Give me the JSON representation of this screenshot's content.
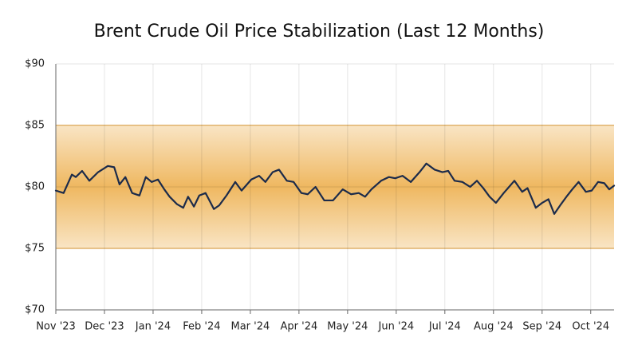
{
  "chart_data": {
    "type": "line",
    "title": "Brent Crude Oil Price Stabilization (Last 12 Months)",
    "x": [
      0,
      0.16,
      0.33,
      0.41,
      0.54,
      0.69,
      0.87,
      1.07,
      1.2,
      1.31,
      1.43,
      1.57,
      1.72,
      1.85,
      1.97,
      2.1,
      2.23,
      2.34,
      2.49,
      2.62,
      2.72,
      2.84,
      2.95,
      3.08,
      3.25,
      3.36,
      3.51,
      3.69,
      3.82,
      4.02,
      4.18,
      4.31,
      4.46,
      4.59,
      4.75,
      4.89,
      5.05,
      5.18,
      5.34,
      5.52,
      5.7,
      5.9,
      6.07,
      6.23,
      6.36,
      6.49,
      6.69,
      6.85,
      6.98,
      7.13,
      7.3,
      7.48,
      7.62,
      7.79,
      7.95,
      8.07,
      8.2,
      8.36,
      8.52,
      8.66,
      8.79,
      8.92,
      9.05,
      9.21,
      9.43,
      9.59,
      9.7,
      9.87,
      10,
      10.13,
      10.25,
      10.39,
      10.52,
      10.62,
      10.75,
      10.9,
      11.02,
      11.15,
      11.28,
      11.38,
      11.48
    ],
    "values": [
      79.7,
      79.5,
      81,
      80.8,
      81.3,
      80.5,
      81.2,
      81.7,
      81.6,
      80.2,
      80.8,
      79.5,
      79.3,
      80.8,
      80.4,
      80.6,
      79.8,
      79.2,
      78.6,
      78.3,
      79.2,
      78.4,
      79.3,
      79.5,
      78.2,
      78.5,
      79.3,
      80.4,
      79.7,
      80.6,
      80.9,
      80.4,
      81.2,
      81.4,
      80.5,
      80.4,
      79.5,
      79.4,
      80.0,
      78.9,
      78.9,
      79.8,
      79.4,
      79.5,
      79.2,
      79.8,
      80.5,
      80.8,
      80.7,
      80.9,
      80.4,
      81.2,
      81.9,
      81.4,
      81.2,
      81.3,
      80.5,
      80.4,
      80.0,
      80.5,
      79.9,
      79.2,
      78.7,
      79.5,
      80.5,
      79.6,
      79.9,
      78.3,
      78.7,
      79.0,
      77.8,
      78.6,
      79.3,
      79.8,
      80.4,
      79.6,
      79.7,
      80.4,
      80.3,
      79.8,
      80.1
    ],
    "color": "#1c2b4a",
    "xlim": [
      0,
      11.48
    ],
    "xticks": [
      {
        "value": 0,
        "label": "Nov '23"
      },
      {
        "value": 1,
        "label": "Dec '23"
      },
      {
        "value": 2,
        "label": "Jan '24"
      },
      {
        "value": 3,
        "label": "Feb '24"
      },
      {
        "value": 4,
        "label": "Mar '24"
      },
      {
        "value": 5,
        "label": "Apr '24"
      },
      {
        "value": 6,
        "label": "May '24"
      },
      {
        "value": 7,
        "label": "Jun '24"
      },
      {
        "value": 8,
        "label": "Jul '24"
      },
      {
        "value": 9,
        "label": "Aug '24"
      },
      {
        "value": 10,
        "label": "Sep '24"
      },
      {
        "value": 11,
        "label": "Oct '24"
      }
    ],
    "ylim": [
      70,
      90
    ],
    "yticks": [
      {
        "value": 70,
        "label": "$70"
      },
      {
        "value": 75,
        "label": "$75"
      },
      {
        "value": 80,
        "label": "$80"
      },
      {
        "value": 85,
        "label": "$85"
      },
      {
        "value": 90,
        "label": "$90"
      }
    ],
    "band": {
      "ylim": [
        75,
        85
      ],
      "color": "#eeb458"
    },
    "grid": true
  }
}
